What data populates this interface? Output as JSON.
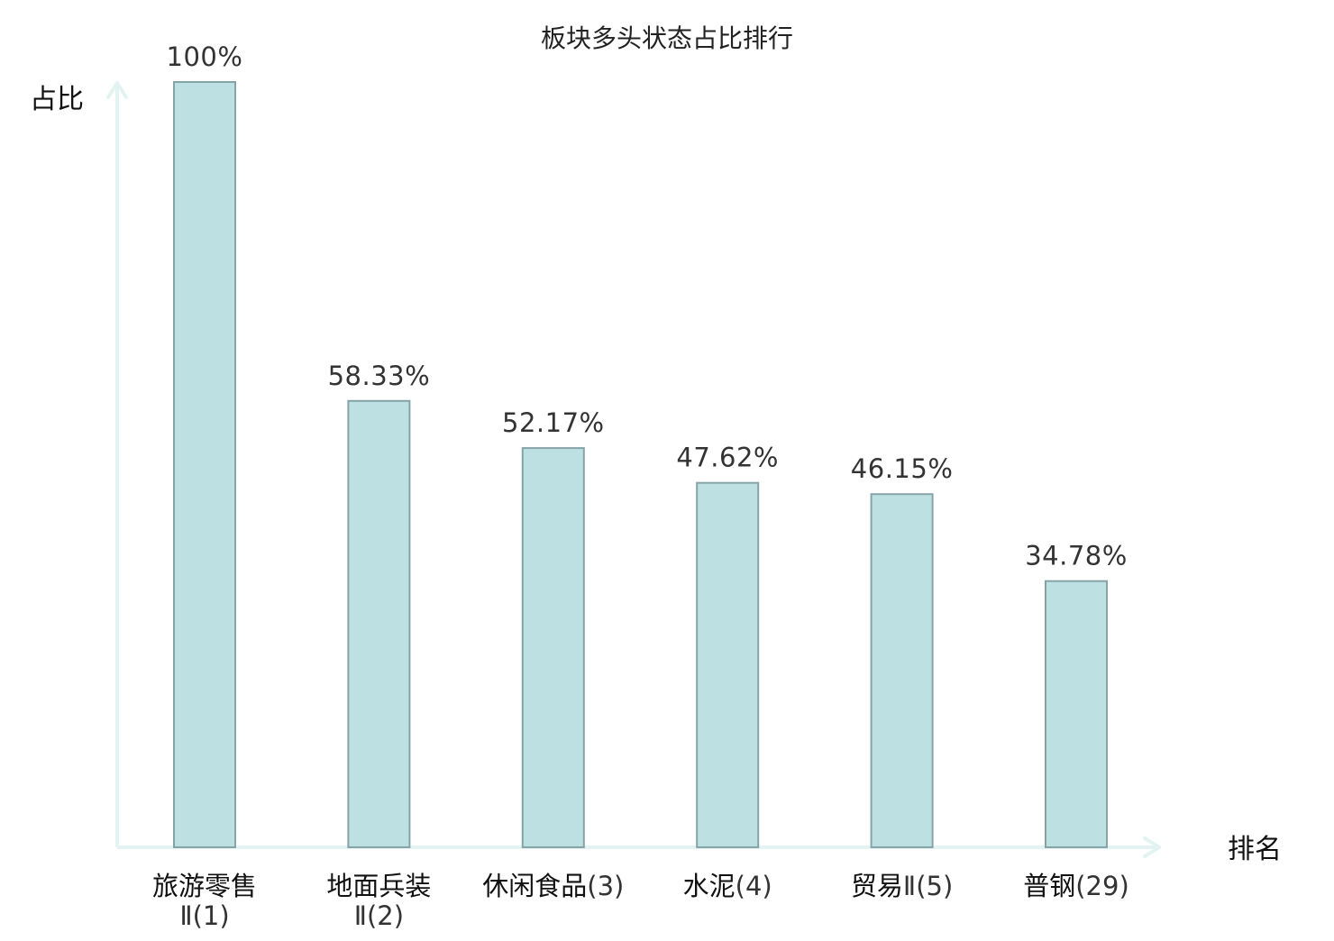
{
  "chart_data": {
    "type": "bar",
    "title": "板块多头状态占比排行",
    "xlabel": "排名",
    "ylabel": "占比",
    "ylim": [
      0,
      100
    ],
    "grid": false,
    "legend": "none",
    "categories": [
      {
        "name": "旅游零售",
        "rank": "Ⅱ(1)",
        "highlight": false
      },
      {
        "name": "地面兵装",
        "rank": "Ⅱ(2)",
        "highlight": false
      },
      {
        "name": "休闲食品",
        "rank": "(3)",
        "highlight": false
      },
      {
        "name": "水泥",
        "rank": "(4)",
        "highlight": false
      },
      {
        "name": "贸易",
        "rank": "Ⅱ(5)",
        "highlight": false
      },
      {
        "name": "普钢",
        "rank": "(29)",
        "highlight": true
      }
    ],
    "values": [
      100,
      58.33,
      52.17,
      47.62,
      46.15,
      34.78
    ],
    "value_labels": [
      "100%",
      "58.33%",
      "52.17%",
      "47.62%",
      "46.15%",
      "34.78%"
    ]
  },
  "colors": {
    "bar_fill": "#bde0e2",
    "bar_stroke": "#86a4a8",
    "axis": "#e2f3f1",
    "highlight_text": "#e02020",
    "value_text": "#333333"
  }
}
